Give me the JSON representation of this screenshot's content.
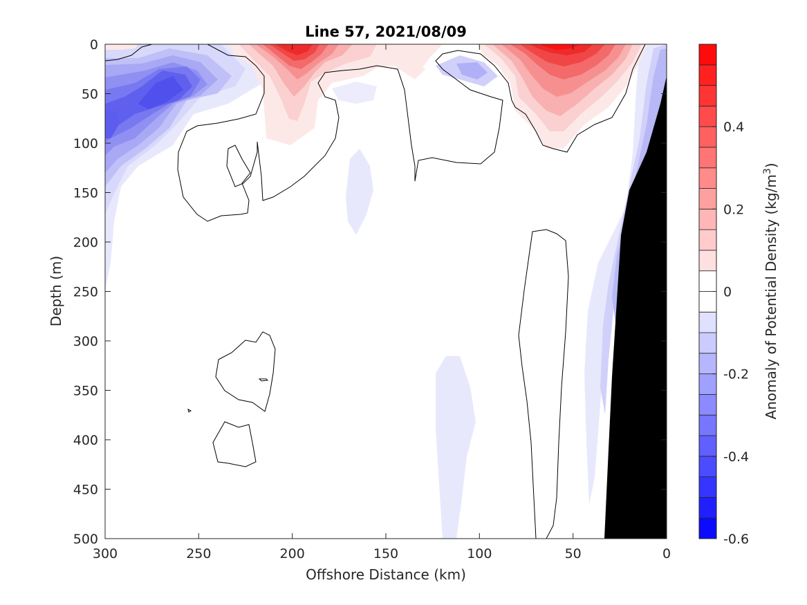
{
  "chart_data": {
    "type": "contour",
    "title": "Line 57, 2021/08/09",
    "xlabel": "Offshore Distance (km)",
    "ylabel": "Depth (m)",
    "colorbar_label_prefix": "Anomaly of Potential Density (kg/m",
    "colorbar_label_exponent": "3",
    "colorbar_label_suffix": ")",
    "xlim": [
      300,
      0
    ],
    "xdir": "reverse",
    "ylim": [
      0,
      500
    ],
    "ydir": "reverse",
    "xticks": [
      300,
      250,
      200,
      150,
      100,
      50,
      0
    ],
    "yticks": [
      0,
      50,
      100,
      150,
      200,
      250,
      300,
      350,
      400,
      450,
      500
    ],
    "clim": [
      -0.6,
      0.6
    ],
    "contour_step": 0.05,
    "colorbar_ticks": [
      -0.6,
      -0.4,
      -0.2,
      0,
      0.2,
      0.4
    ],
    "colorbar_tick_labels": [
      "-0.6",
      "-0.4",
      "-0.2",
      "0",
      "0.2",
      "0.4"
    ],
    "colormap": [
      "#0000ff",
      "#ffffff",
      "#ff0000"
    ],
    "bathymetry_color": "#000000",
    "zero_contour_color": "#000000",
    "features": [
      {
        "kind": "negative",
        "description": "blue anomaly near surface",
        "x_km": [
          300,
          230
        ],
        "depth_m": [
          0,
          150
        ],
        "min_value": -0.35
      },
      {
        "kind": "positive",
        "description": "red core at surface",
        "x_km": [
          210,
          185
        ],
        "depth_m": [
          0,
          40
        ],
        "max_value": 0.55
      },
      {
        "kind": "positive",
        "description": "red core at surface",
        "x_km": [
          80,
          40
        ],
        "depth_m": [
          0,
          60
        ],
        "max_value": 0.55
      }
    ]
  }
}
